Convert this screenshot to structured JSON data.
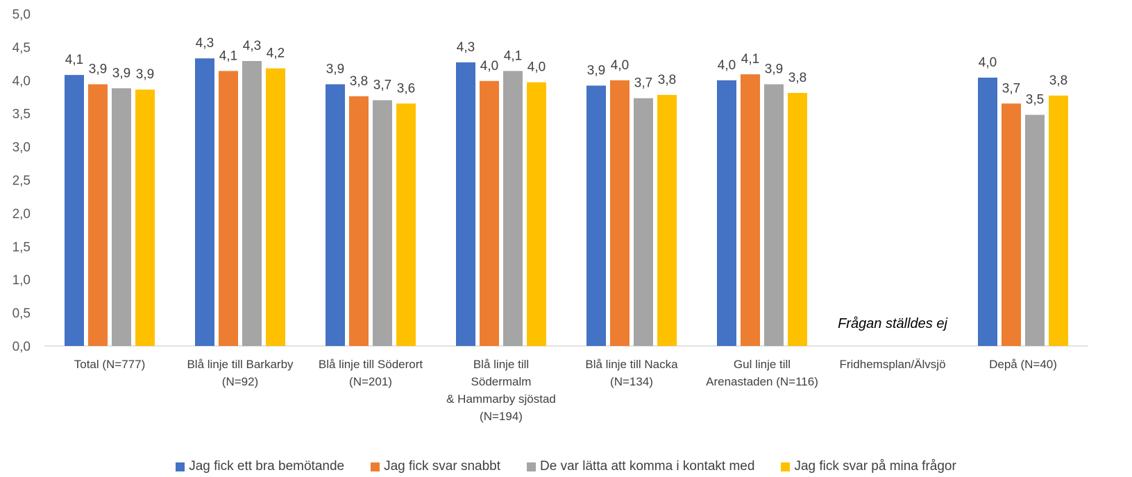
{
  "chart_data": {
    "type": "bar",
    "categories": [
      [
        "Total (N=777)"
      ],
      [
        "Blå linje till Barkarby",
        "(N=92)"
      ],
      [
        "Blå linje till Söderort",
        "(N=201)"
      ],
      [
        "Blå linje till",
        "Södermalm",
        "& Hammarby sjöstad",
        "(N=194)"
      ],
      [
        "Blå linje till Nacka",
        "(N=134)"
      ],
      [
        "Gul linje till",
        "Arenastaden (N=116)"
      ],
      [
        "Fridhemsplan/Älvsjö"
      ],
      [
        "Depå (N=40)"
      ]
    ],
    "series": [
      {
        "name": "Jag fick ett bra bemötande",
        "color": "#4472C4",
        "values": [
          4.08,
          4.33,
          3.94,
          4.27,
          3.92,
          4.0,
          null,
          4.04
        ]
      },
      {
        "name": "Jag fick svar snabbt",
        "color": "#ED7D31",
        "values": [
          3.94,
          4.14,
          3.76,
          3.99,
          4.0,
          4.09,
          null,
          3.65
        ]
      },
      {
        "name": "De var lätta att komma i kontakt med",
        "color": "#A5A5A5",
        "values": [
          3.88,
          4.29,
          3.7,
          4.14,
          3.73,
          3.94,
          null,
          3.48
        ]
      },
      {
        "name": "Jag fick svar på mina frågor",
        "color": "#FFC000",
        "values": [
          3.86,
          4.18,
          3.65,
          3.97,
          3.78,
          3.81,
          null,
          3.77
        ]
      }
    ],
    "data_labels": [
      [
        "4,1",
        "4,3",
        "3,9",
        "4,3",
        "3,9",
        "4,0",
        "",
        "4,0"
      ],
      [
        "3,9",
        "4,1",
        "3,8",
        "4,0",
        "4,0",
        "4,1",
        "",
        "3,7"
      ],
      [
        "3,9",
        "4,3",
        "3,7",
        "4,1",
        "3,7",
        "3,9",
        "",
        "3,5"
      ],
      [
        "3,9",
        "4,2",
        "3,6",
        "4,0",
        "3,8",
        "3,8",
        "",
        "3,8"
      ]
    ],
    "annotation": {
      "category_index": 6,
      "text": "Frågan ställdes ej"
    },
    "ylim": [
      0,
      5
    ],
    "yticks": [
      "0,0",
      "0,5",
      "1,0",
      "1,5",
      "2,0",
      "2,5",
      "3,0",
      "3,5",
      "4,0",
      "4,5",
      "5,0"
    ],
    "grid": false,
    "legend_position": "bottom",
    "title": "",
    "xlabel": "",
    "ylabel": ""
  }
}
